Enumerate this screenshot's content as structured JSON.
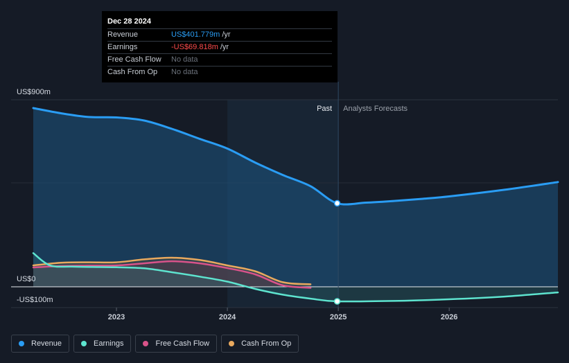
{
  "tooltip": {
    "date": "Dec 28 2024",
    "rows": [
      {
        "label": "Revenue",
        "value": "US$401.779m",
        "unit": "/yr"
      },
      {
        "label": "Earnings",
        "value": "-US$69.818m",
        "unit": "/yr"
      },
      {
        "label": "Free Cash Flow",
        "value": "No data",
        "unit": ""
      },
      {
        "label": "Cash From Op",
        "value": "No data",
        "unit": ""
      }
    ]
  },
  "legend": [
    {
      "label": "Revenue",
      "color": "#2a9df4"
    },
    {
      "label": "Earnings",
      "color": "#5ee4cf"
    },
    {
      "label": "Free Cash Flow",
      "color": "#d9538a"
    },
    {
      "label": "Cash From Op",
      "color": "#e9a95e"
    }
  ],
  "chart_data": {
    "type": "area",
    "y_axis_labels": [
      "US$900m",
      "US$0",
      "-US$100m"
    ],
    "ylim": [
      -100,
      900
    ],
    "xlim": [
      2022.25,
      2026.98
    ],
    "x_ticks": [
      {
        "value": 2023,
        "label": "2023"
      },
      {
        "value": 2024,
        "label": "2024"
      },
      {
        "value": 2025,
        "label": "2025"
      },
      {
        "value": 2026,
        "label": "2026"
      }
    ],
    "past_label": "Past",
    "forecast_label": "Analysts Forecasts",
    "past_start": 2024.0,
    "forecast_start": 2025.0,
    "highlight_x": 2024.99,
    "colors": {
      "revenue": "#2a9df4",
      "earnings": "#5ee4cf",
      "fcf": "#d9538a",
      "cfo": "#e9a95e"
    },
    "series": [
      {
        "name": "Revenue",
        "key": "revenue",
        "x": [
          2022.25,
          2022.5,
          2022.75,
          2023.0,
          2023.25,
          2023.5,
          2023.75,
          2024.0,
          2024.25,
          2024.5,
          2024.75,
          2024.99,
          2025.25,
          2025.5,
          2025.75,
          2026.0,
          2026.5,
          2026.98
        ],
        "y": [
          860,
          835,
          817,
          815,
          800,
          760,
          712,
          665,
          598,
          538,
          484,
          402,
          405,
          413,
          423,
          435,
          467,
          504
        ]
      },
      {
        "name": "Earnings",
        "key": "earnings",
        "x": [
          2022.25,
          2022.4,
          2022.6,
          2022.85,
          2023.0,
          2023.25,
          2023.5,
          2023.75,
          2024.0,
          2024.25,
          2024.5,
          2024.75,
          2024.99,
          2025.5,
          2026.0,
          2026.5,
          2026.98
        ],
        "y": [
          162,
          103,
          97,
          95,
          94,
          89,
          70,
          49,
          25,
          -10,
          -38,
          -57,
          -70,
          -68,
          -60,
          -47,
          -27
        ]
      },
      {
        "name": "Free Cash Flow",
        "key": "fcf",
        "x": [
          2022.25,
          2022.5,
          2022.75,
          2023.0,
          2023.25,
          2023.5,
          2023.75,
          2024.0,
          2024.25,
          2024.5,
          2024.75
        ],
        "y": [
          93,
          100,
          102,
          103,
          113,
          123,
          113,
          90,
          60,
          7,
          -5
        ]
      },
      {
        "name": "Cash From Op",
        "key": "cfo",
        "x": [
          2022.25,
          2022.5,
          2022.75,
          2023.0,
          2023.25,
          2023.5,
          2023.75,
          2024.0,
          2024.25,
          2024.5,
          2024.75
        ],
        "y": [
          103,
          116,
          118,
          118,
          132,
          140,
          129,
          103,
          75,
          22,
          12
        ]
      }
    ]
  }
}
